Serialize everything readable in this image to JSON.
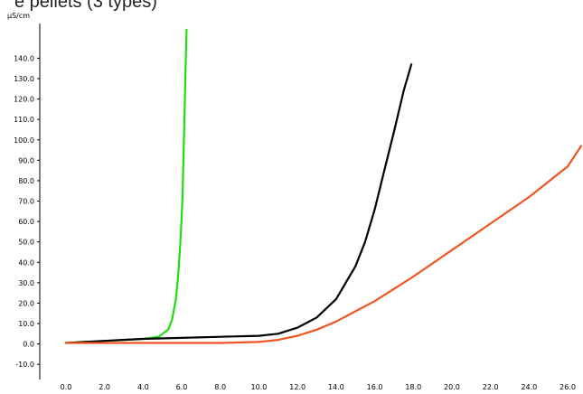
{
  "chart_data": {
    "type": "line",
    "title": "e pellets (3 types)",
    "ylabel": "µS/cm",
    "xlabel": "",
    "xlim": [
      -0.7,
      26.7
    ],
    "ylim": [
      -13,
      157
    ],
    "xticks": [
      "0.0",
      "2.0",
      "4.0",
      "6.0",
      "8.0",
      "10.0",
      "12.0",
      "14.0",
      "16.0",
      "18.0",
      "20.0",
      "22.0",
      "24.0",
      "26.0"
    ],
    "yticks": [
      "-10.0",
      "0.0",
      "10.0",
      "20.0",
      "30.0",
      "40.0",
      "50.0",
      "60.0",
      "70.0",
      "80.0",
      "90.0",
      "100.0",
      "110.0",
      "120.0",
      "130.0",
      "140.0"
    ],
    "grid": false,
    "series": [
      {
        "color": "#22dd11",
        "x": [
          0,
          1,
          2,
          3,
          4,
          4.8,
          5.3,
          5.5,
          5.7,
          5.8,
          5.9,
          6.0,
          6.05,
          6.1,
          6.15,
          6.2,
          6.25
        ],
        "y": [
          0.5,
          1,
          1.5,
          2,
          2.5,
          3.5,
          7,
          12,
          22,
          32,
          45,
          62,
          75,
          95,
          115,
          135,
          154
        ]
      },
      {
        "color": "#000000",
        "x": [
          0,
          2,
          4,
          6,
          8,
          10,
          11,
          12,
          13,
          14,
          15,
          15.5,
          16,
          16.5,
          17,
          17.5,
          17.9
        ],
        "y": [
          0.5,
          1.5,
          2.5,
          3,
          3.5,
          4,
          5,
          8,
          13,
          22,
          38,
          50,
          66,
          85,
          104,
          124,
          137
        ]
      },
      {
        "color": "#ee5522",
        "x": [
          0,
          2,
          4,
          6,
          8,
          10,
          11,
          12,
          13,
          14,
          15,
          16,
          18,
          20,
          22,
          24,
          26,
          26.7
        ],
        "y": [
          0.5,
          0.5,
          0.5,
          0.5,
          0.5,
          1,
          2,
          4,
          7,
          11,
          16,
          21,
          33,
          46,
          59,
          72,
          87,
          97
        ]
      }
    ]
  }
}
